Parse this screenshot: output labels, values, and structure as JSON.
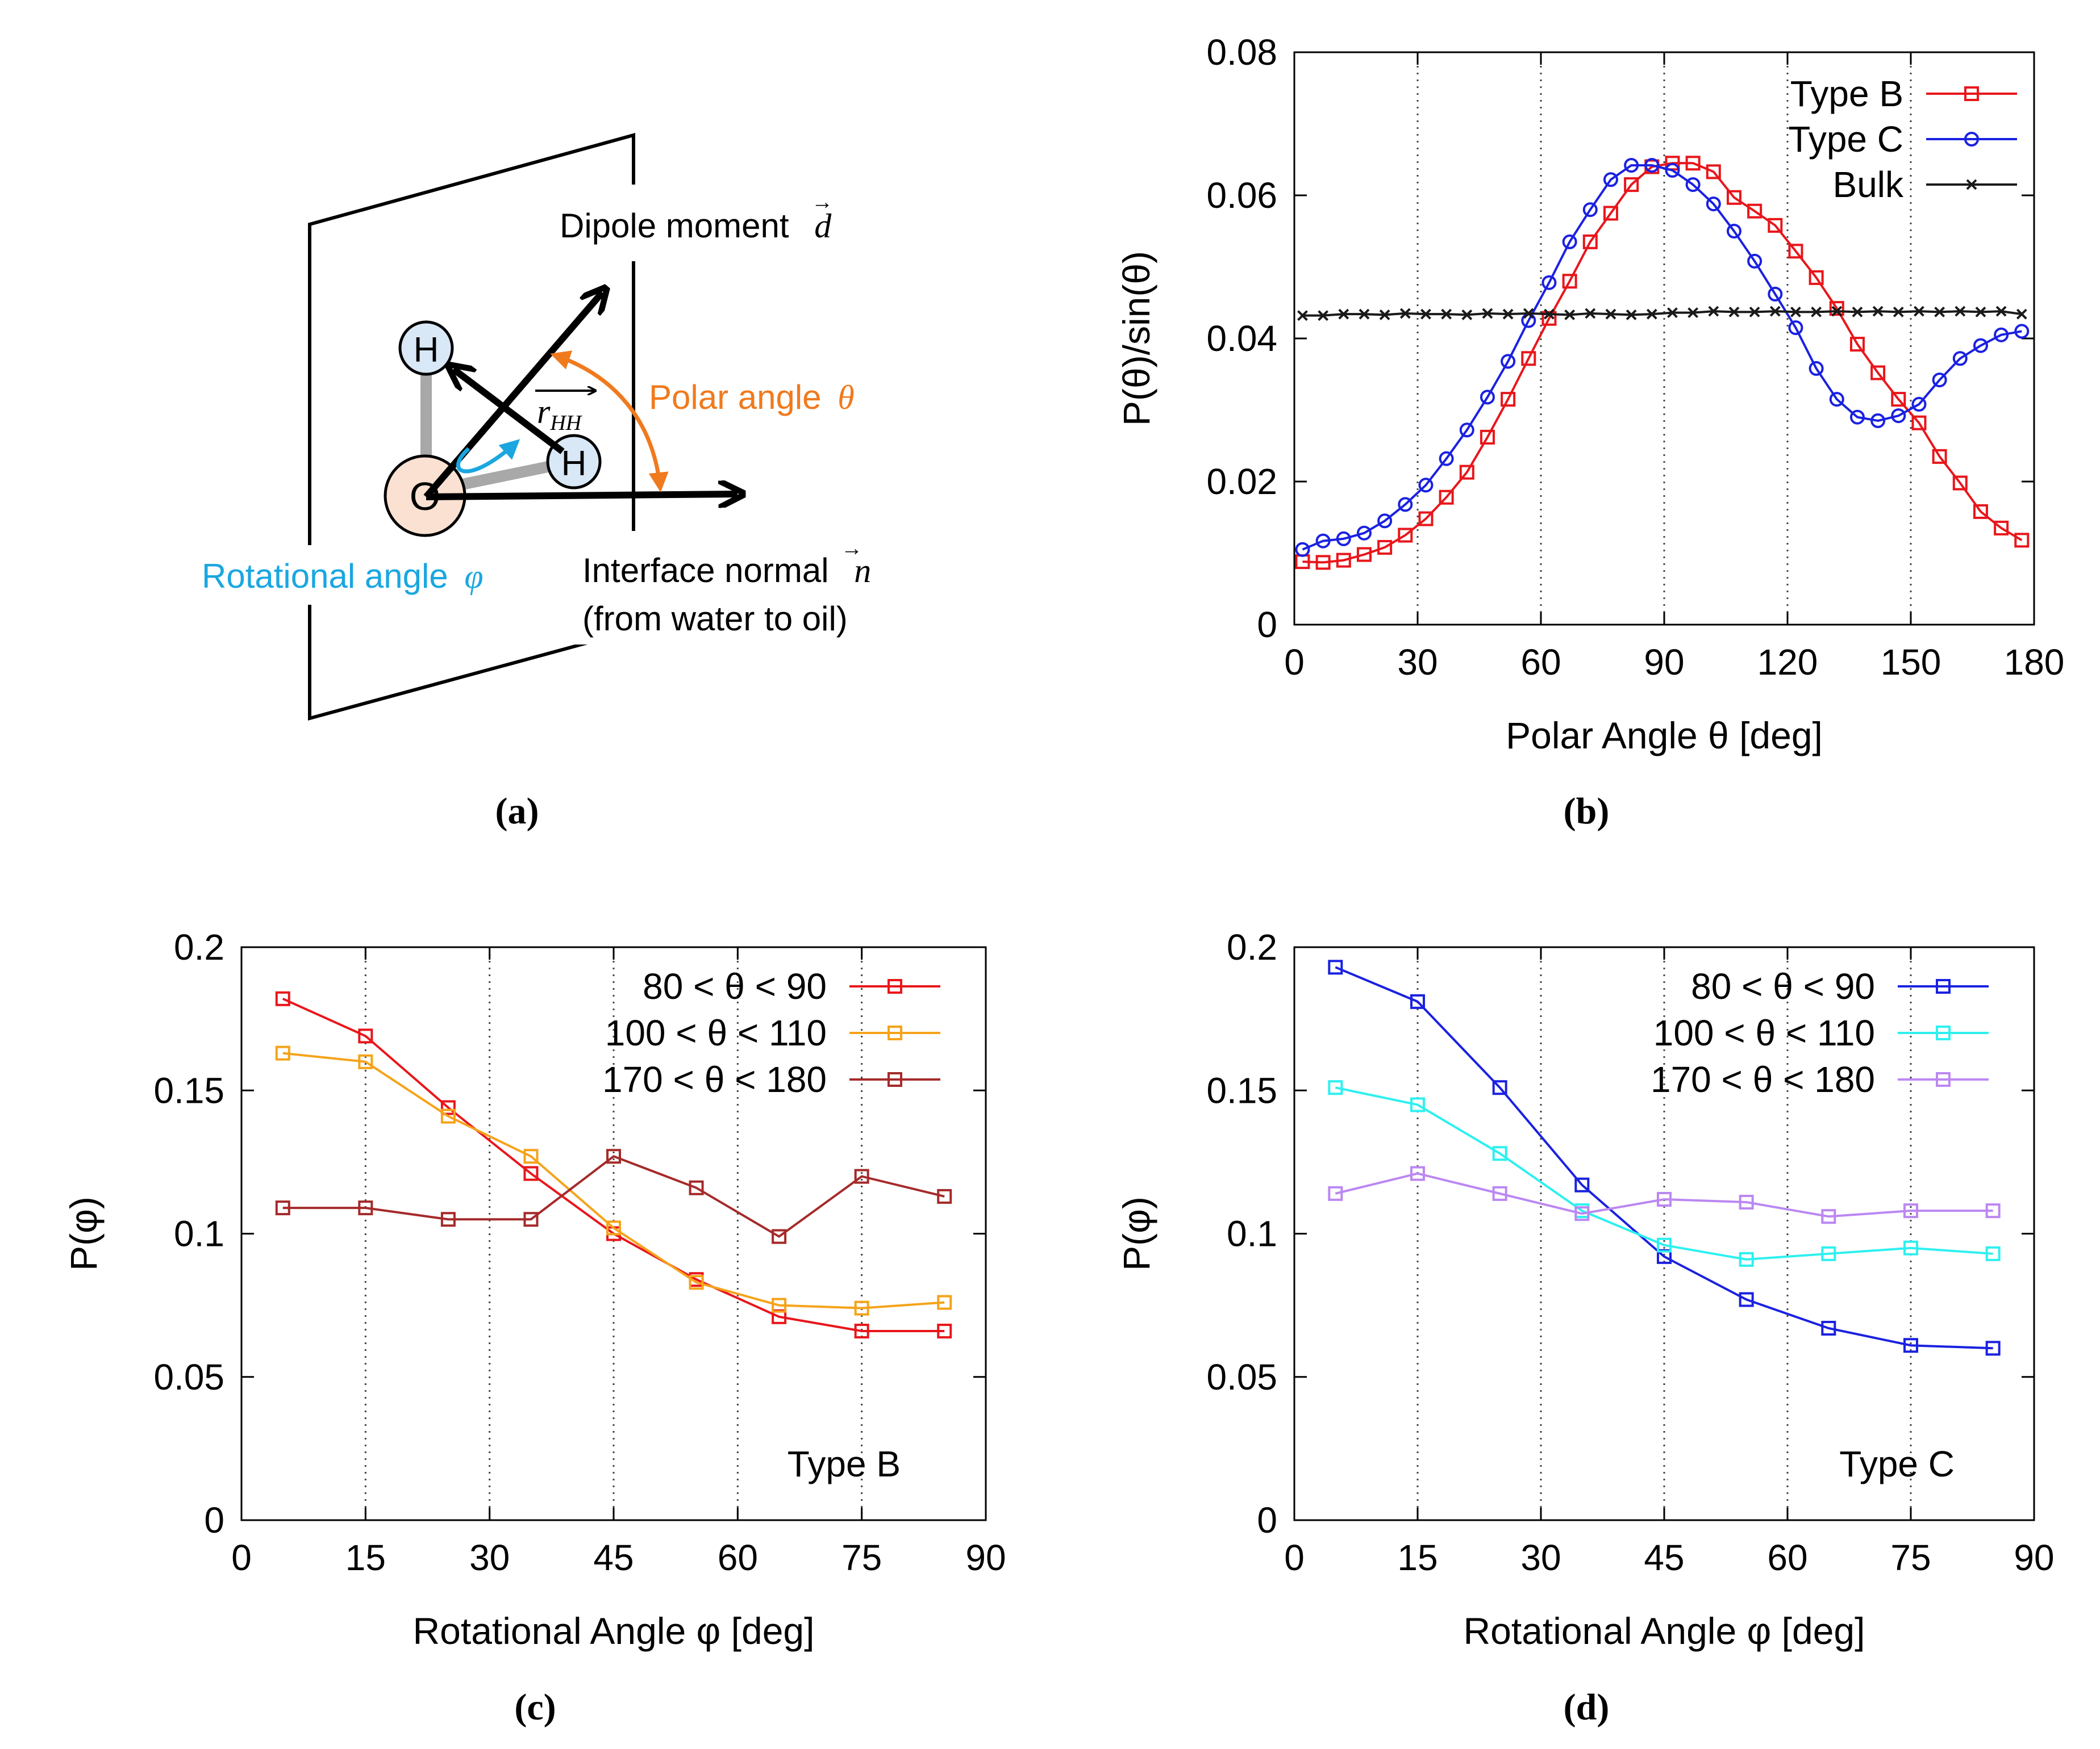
{
  "figure": {
    "panel_labels": [
      "(a)",
      "(b)",
      "(c)",
      "(d)"
    ]
  },
  "schematic": {
    "dipole_label": "Dipole moment",
    "dipole_symbol": "d",
    "polar_label": "Polar angle",
    "polar_symbol": "θ",
    "rhh_label": "r",
    "rhh_sub": "HH",
    "rotational_label": "Rotational angle",
    "rotational_symbol": "φ",
    "normal_label": "Interface normal",
    "normal_symbol": "n",
    "normal_sub": "(from water to oil)",
    "atom_h": "H",
    "atom_o": "O",
    "colors": {
      "polar": "#f07a1e",
      "rotational": "#1aa7e0",
      "h_fill": "#d9e8f6",
      "o_fill": "#fbe1d2"
    }
  },
  "chart_data": [
    {
      "id": "b",
      "type": "line",
      "xlabel": "Polar Angle  θ  [deg]",
      "ylabel": "P(θ)/sin(θ)",
      "xlim": [
        0,
        180
      ],
      "ylim": [
        0,
        0.08
      ],
      "xticks": [
        0,
        30,
        60,
        90,
        120,
        150,
        180
      ],
      "yticks": [
        0,
        0.02,
        0.04,
        0.06,
        0.08
      ],
      "ytick_labels": [
        "0",
        "0.02",
        "0.04",
        "0.06",
        "0.08"
      ],
      "vgrid": [
        30,
        60,
        90,
        120,
        150
      ],
      "legend_position": "top-right",
      "series": [
        {
          "name": "Type B",
          "color": "#e8161b",
          "marker": "square",
          "x": [
            2,
            7,
            12,
            17,
            22,
            27,
            32,
            37,
            42,
            47,
            52,
            57,
            62,
            67,
            72,
            77,
            82,
            87,
            92,
            97,
            102,
            107,
            112,
            117,
            122,
            127,
            132,
            137,
            142,
            147,
            152,
            157,
            162,
            167,
            172,
            177
          ],
          "y": [
            0.0088,
            0.0087,
            0.009,
            0.0098,
            0.0108,
            0.0125,
            0.0148,
            0.0178,
            0.0213,
            0.0262,
            0.0315,
            0.0372,
            0.0428,
            0.048,
            0.0535,
            0.0575,
            0.0615,
            0.064,
            0.0645,
            0.0645,
            0.0633,
            0.0597,
            0.0578,
            0.0558,
            0.0522,
            0.0485,
            0.0442,
            0.0392,
            0.0352,
            0.0315,
            0.0282,
            0.0235,
            0.0198,
            0.0158,
            0.0135,
            0.0118
          ]
        },
        {
          "name": "Type C",
          "color": "#1a21e0",
          "marker": "circle",
          "x": [
            2,
            7,
            12,
            17,
            22,
            27,
            32,
            37,
            42,
            47,
            52,
            57,
            62,
            67,
            72,
            77,
            82,
            87,
            92,
            97,
            102,
            107,
            112,
            117,
            122,
            127,
            132,
            137,
            142,
            147,
            152,
            157,
            162,
            167,
            172,
            177
          ],
          "y": [
            0.0105,
            0.0117,
            0.012,
            0.0128,
            0.0145,
            0.0168,
            0.0195,
            0.0232,
            0.0272,
            0.0318,
            0.0368,
            0.0425,
            0.0478,
            0.0535,
            0.058,
            0.0622,
            0.0642,
            0.0642,
            0.0635,
            0.0615,
            0.0588,
            0.055,
            0.0508,
            0.0462,
            0.0415,
            0.0358,
            0.0315,
            0.029,
            0.0285,
            0.0292,
            0.0308,
            0.0342,
            0.0372,
            0.039,
            0.0405,
            0.041
          ]
        },
        {
          "name": "Bulk",
          "color": "#1a1a1a",
          "marker": "cross",
          "x": [
            2,
            7,
            12,
            17,
            22,
            27,
            32,
            37,
            42,
            47,
            52,
            57,
            62,
            67,
            72,
            77,
            82,
            87,
            92,
            97,
            102,
            107,
            112,
            117,
            122,
            127,
            132,
            137,
            142,
            147,
            152,
            157,
            162,
            167,
            172,
            177
          ],
          "y": [
            0.0432,
            0.0432,
            0.0434,
            0.0434,
            0.0433,
            0.0435,
            0.0434,
            0.0434,
            0.0433,
            0.0435,
            0.0434,
            0.0435,
            0.0434,
            0.0433,
            0.0435,
            0.0434,
            0.0433,
            0.0434,
            0.0436,
            0.0436,
            0.0438,
            0.0437,
            0.0437,
            0.0438,
            0.0437,
            0.0437,
            0.0438,
            0.0437,
            0.0438,
            0.0437,
            0.0438,
            0.0437,
            0.0438,
            0.0437,
            0.0438,
            0.0434
          ]
        }
      ]
    },
    {
      "id": "c",
      "type": "line",
      "xlabel": "Rotational Angle  φ  [deg]",
      "ylabel": "P(φ)",
      "xlim": [
        0,
        90
      ],
      "ylim": [
        0,
        0.2
      ],
      "xticks": [
        0,
        15,
        30,
        45,
        60,
        75,
        90
      ],
      "yticks": [
        0,
        0.05,
        0.1,
        0.15,
        0.2
      ],
      "ytick_labels": [
        "0",
        "0.05",
        "0.1",
        "0.15",
        "0.2"
      ],
      "vgrid": [
        15,
        30,
        45,
        60,
        75
      ],
      "annotation": "Type B",
      "legend_position": "top-right",
      "series": [
        {
          "name": "80 < θ < 90",
          "color": "#e8161b",
          "marker": "square",
          "x": [
            5,
            15,
            25,
            35,
            45,
            55,
            65,
            75,
            85
          ],
          "y": [
            0.182,
            0.169,
            0.144,
            0.121,
            0.1,
            0.084,
            0.071,
            0.066,
            0.066
          ]
        },
        {
          "name": "100 < θ < 110",
          "color": "#f5a31a",
          "marker": "square",
          "x": [
            5,
            15,
            25,
            35,
            45,
            55,
            65,
            75,
            85
          ],
          "y": [
            0.163,
            0.16,
            0.141,
            0.127,
            0.102,
            0.083,
            0.075,
            0.074,
            0.076
          ]
        },
        {
          "name": "170 < θ < 180",
          "color": "#a52a2a",
          "marker": "square",
          "x": [
            5,
            15,
            25,
            35,
            45,
            55,
            65,
            75,
            85
          ],
          "y": [
            0.109,
            0.109,
            0.105,
            0.105,
            0.127,
            0.116,
            0.099,
            0.12,
            0.113
          ]
        }
      ]
    },
    {
      "id": "d",
      "type": "line",
      "xlabel": "Rotational Angle  φ  [deg]",
      "ylabel": "P(φ)",
      "xlim": [
        0,
        90
      ],
      "ylim": [
        0,
        0.2
      ],
      "xticks": [
        0,
        15,
        30,
        45,
        60,
        75,
        90
      ],
      "yticks": [
        0,
        0.05,
        0.1,
        0.15,
        0.2
      ],
      "ytick_labels": [
        "0",
        "0.05",
        "0.1",
        "0.15",
        "0.2"
      ],
      "vgrid": [
        15,
        30,
        45,
        60,
        75
      ],
      "annotation": "Type C",
      "legend_position": "top-right",
      "series": [
        {
          "name": "80 < θ < 90",
          "color": "#1a21e0",
          "marker": "square",
          "x": [
            5,
            15,
            25,
            35,
            45,
            55,
            65,
            75,
            85
          ],
          "y": [
            0.193,
            0.181,
            0.151,
            0.117,
            0.092,
            0.077,
            0.067,
            0.061,
            0.06
          ]
        },
        {
          "name": "100 < θ < 110",
          "color": "#2ef0f0",
          "marker": "square",
          "x": [
            5,
            15,
            25,
            35,
            45,
            55,
            65,
            75,
            85
          ],
          "y": [
            0.151,
            0.145,
            0.128,
            0.108,
            0.096,
            0.091,
            0.093,
            0.095,
            0.093
          ]
        },
        {
          "name": "170 < θ < 180",
          "color": "#bb88f2",
          "marker": "square",
          "x": [
            5,
            15,
            25,
            35,
            45,
            55,
            65,
            75,
            85
          ],
          "y": [
            0.114,
            0.121,
            0.114,
            0.107,
            0.112,
            0.111,
            0.106,
            0.108,
            0.108
          ]
        }
      ]
    }
  ]
}
